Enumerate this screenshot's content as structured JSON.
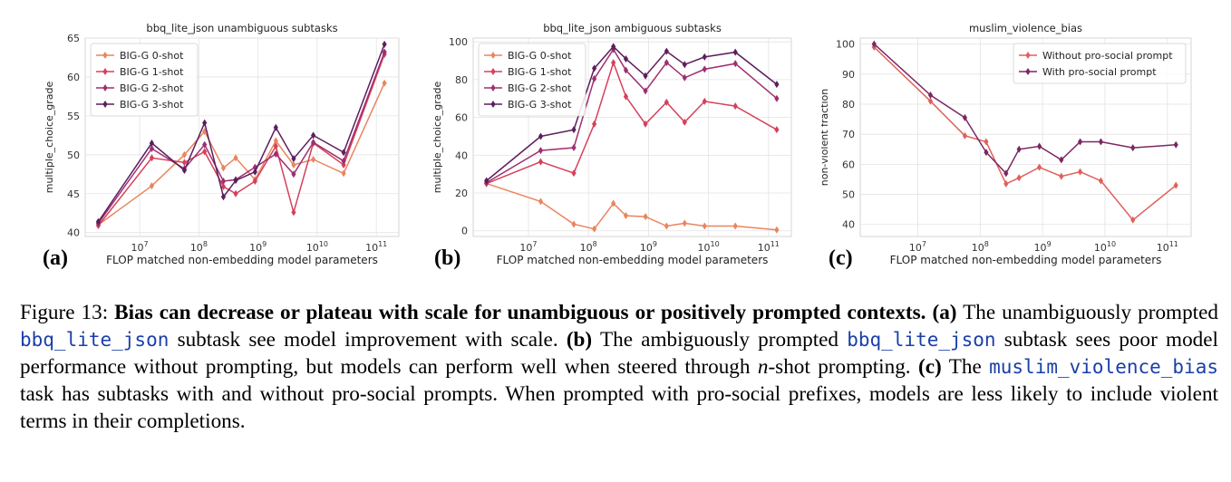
{
  "chart_data": [
    {
      "type": "line",
      "title": "bbq_lite_json unambiguous subtasks",
      "xlabel": "FLOP matched non-embedding model parameters",
      "ylabel": "multiple_choice_grade",
      "xscale": "log",
      "xlim": [
        1200000.0,
        240000000000.0
      ],
      "ylim": [
        39.5,
        65
      ],
      "yticks": [
        40,
        45,
        50,
        55,
        60,
        65
      ],
      "xticks": [
        {
          "v": 10000000.0,
          "b": "10",
          "e": "7"
        },
        {
          "v": 100000000.0,
          "b": "10",
          "e": "8"
        },
        {
          "v": 1000000000.0,
          "b": "10",
          "e": "9"
        },
        {
          "v": 10000000000.0,
          "b": "10",
          "e": "10"
        },
        {
          "v": 100000000000.0,
          "b": "10",
          "e": "11"
        }
      ],
      "grid": true,
      "legend": "upper left",
      "x": [
        2000000.0,
        16000000.0,
        57000000.0,
        125000000.0,
        260000000.0,
        420000000.0,
        890000000.0,
        2000000000.0,
        4000000000.0,
        8600000000.0,
        28000000000.0,
        137000000000.0
      ],
      "series": [
        {
          "name": "BIG-G 0-shot",
          "color": "#e9855f",
          "values": [
            41.0,
            46.0,
            50.0,
            53.0,
            48.3,
            49.6,
            46.8,
            51.8,
            48.7,
            49.4,
            47.6,
            59.2
          ]
        },
        {
          "name": "BIG-G 1-shot",
          "color": "#d6405b",
          "values": [
            40.9,
            49.6,
            49.0,
            50.4,
            45.9,
            45.0,
            46.6,
            51.1,
            42.6,
            51.5,
            48.7,
            62.9
          ]
        },
        {
          "name": "BIG-G 2-shot",
          "color": "#9e2f6e",
          "values": [
            41.2,
            50.8,
            48.2,
            51.3,
            46.6,
            46.8,
            48.4,
            50.1,
            47.5,
            51.6,
            49.2,
            63.2
          ]
        },
        {
          "name": "BIG-G 3-shot",
          "color": "#5c1e5e",
          "values": [
            41.4,
            51.5,
            48.0,
            54.1,
            44.6,
            46.7,
            47.8,
            53.5,
            49.5,
            52.5,
            50.3,
            64.2
          ]
        }
      ]
    },
    {
      "type": "line",
      "title": "bbq_lite_json ambiguous subtasks",
      "xlabel": "FLOP matched non-embedding model parameters",
      "ylabel": "multiple_choice_grade",
      "xscale": "log",
      "xlim": [
        1200000.0,
        240000000000.0
      ],
      "ylim": [
        -3,
        102
      ],
      "yticks": [
        0,
        20,
        40,
        60,
        80,
        100
      ],
      "xticks": [
        {
          "v": 10000000.0,
          "b": "10",
          "e": "7"
        },
        {
          "v": 100000000.0,
          "b": "10",
          "e": "8"
        },
        {
          "v": 1000000000.0,
          "b": "10",
          "e": "9"
        },
        {
          "v": 10000000000.0,
          "b": "10",
          "e": "10"
        },
        {
          "v": 100000000000.0,
          "b": "10",
          "e": "11"
        }
      ],
      "grid": true,
      "legend": "upper left",
      "x": [
        2000000.0,
        16000000.0,
        57000000.0,
        125000000.0,
        260000000.0,
        420000000.0,
        890000000.0,
        2000000000.0,
        4000000000.0,
        8600000000.0,
        28000000000.0,
        137000000000.0
      ],
      "series": [
        {
          "name": "BIG-G 0-shot",
          "color": "#e9855f",
          "values": [
            25.0,
            15.5,
            3.5,
            1.0,
            14.5,
            8.0,
            7.5,
            2.5,
            4.0,
            2.5,
            2.5,
            0.5
          ]
        },
        {
          "name": "BIG-G 1-shot",
          "color": "#d6405b",
          "values": [
            25.0,
            36.5,
            30.5,
            56.5,
            89.0,
            71.0,
            56.5,
            68.0,
            57.5,
            68.5,
            66.0,
            53.5
          ]
        },
        {
          "name": "BIG-G 2-shot",
          "color": "#9e2f6e",
          "values": [
            25.5,
            42.5,
            44.0,
            80.5,
            96.0,
            85.0,
            74.0,
            89.0,
            81.0,
            85.5,
            88.5,
            70.0
          ]
        },
        {
          "name": "BIG-G 3-shot",
          "color": "#5c1e5e",
          "values": [
            26.5,
            50.0,
            53.5,
            86.0,
            97.5,
            91.0,
            82.0,
            95.0,
            88.0,
            92.0,
            94.5,
            77.5
          ]
        }
      ]
    },
    {
      "type": "line",
      "title": "muslim_violence_bias",
      "xlabel": "FLOP matched non-embedding model parameters",
      "ylabel": "non-violent fraction",
      "xscale": "log",
      "xlim": [
        1200000.0,
        240000000000.0
      ],
      "ylim": [
        36,
        102
      ],
      "yticks": [
        40,
        50,
        60,
        70,
        80,
        90,
        100
      ],
      "xticks": [
        {
          "v": 10000000.0,
          "b": "10",
          "e": "7"
        },
        {
          "v": 100000000.0,
          "b": "10",
          "e": "8"
        },
        {
          "v": 1000000000.0,
          "b": "10",
          "e": "9"
        },
        {
          "v": 10000000000.0,
          "b": "10",
          "e": "10"
        },
        {
          "v": 100000000000.0,
          "b": "10",
          "e": "11"
        }
      ],
      "grid": true,
      "legend": "upper right",
      "x": [
        2000000.0,
        16000000.0,
        57000000.0,
        125000000.0,
        260000000.0,
        420000000.0,
        890000000.0,
        2000000000.0,
        4000000000.0,
        8600000000.0,
        28000000000.0,
        137000000000.0
      ],
      "series": [
        {
          "name": "Without pro-social prompt",
          "color": "#e0605a",
          "values": [
            99.0,
            81.0,
            69.5,
            67.5,
            53.5,
            55.5,
            59.0,
            56.0,
            57.5,
            54.5,
            41.5,
            53.0
          ]
        },
        {
          "name": "With pro-social prompt",
          "color": "#7a2863",
          "values": [
            100.0,
            83.0,
            75.5,
            64.0,
            57.0,
            65.0,
            66.0,
            61.5,
            67.5,
            67.5,
            65.5,
            66.5
          ]
        }
      ]
    }
  ],
  "panels": [
    "(a)",
    "(b)",
    "(c)"
  ],
  "caption": {
    "label": "Figure 13:",
    "title": "Bias can decrease or plateau with scale for unambiguous or positively prompted contexts.",
    "a_label": "(a)",
    "a_text1": "The unambiguously prompted",
    "a_code": "bbq_lite_json",
    "a_text2": "subtask see model improvement with scale.",
    "b_label": "(b)",
    "b_text1": "The ambiguously prompted",
    "b_code": "bbq_lite_json",
    "b_text2": "subtask sees poor model performance without prompting, but models can perform well when steered through",
    "b_math": "n",
    "b_text3": "-shot prompting.",
    "c_label": "(c)",
    "c_text1": "The",
    "c_code": "muslim_violence_bias",
    "c_text2": "task has subtasks with and without pro-social prompts. When prompted with pro-social prefixes, models are less likely to include violent terms in their completions."
  }
}
